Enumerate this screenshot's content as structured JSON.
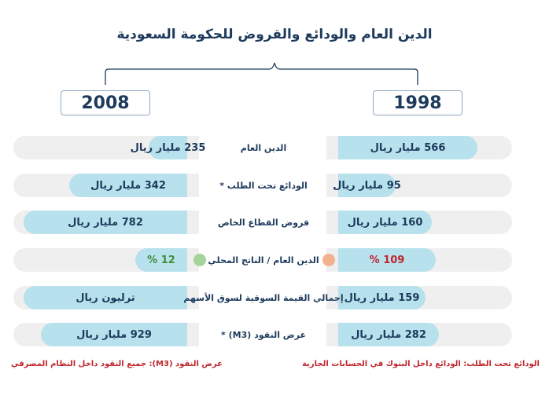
{
  "title": "الدين العام والودائع والقروض للحكومة السعودية",
  "years": {
    "left": "2008",
    "right": "1998"
  },
  "colors": {
    "bar": "#b7e1ec",
    "track": "#efefef",
    "text": "#1d3a5c",
    "accent_red": "#c0262d",
    "accent_green": "#3f8f3a",
    "dot_orange": "#f2b18f",
    "dot_green": "#a6d39a"
  },
  "chart_data": {
    "type": "bar",
    "title": "الدين العام والودائع والقروض للحكومة السعودية",
    "series": [
      {
        "name": "2008",
        "values": [
          235,
          342,
          782,
          12,
          null,
          929
        ]
      },
      {
        "name": "1998",
        "values": [
          566,
          95,
          160,
          109,
          159,
          282
        ]
      }
    ],
    "categories": [
      "الدين العام",
      "الودائع تحت الطلب *",
      "قروض القطاع الخاص",
      "الدين العام / الناتج المحلي",
      "إجمالي القيمة السوقية لسوق الأسهم",
      "عرض النقود (M3) *"
    ],
    "rows": [
      {
        "label": "الدين العام",
        "left_text": "235 مليار ريال",
        "right_text": "566 مليار ريال",
        "left_fill": 0.22,
        "right_fill": 0.8
      },
      {
        "label": "الودائع تحت الطلب *",
        "left_text": "342 مليار ريال",
        "right_text": "95 مليار ريال",
        "left_fill": 0.68,
        "right_fill": 0.33
      },
      {
        "label": "قروض القطاع الخاص",
        "left_text": "782 مليار ريال",
        "right_text": "160 مليار ريال",
        "left_fill": 0.94,
        "right_fill": 0.54
      },
      {
        "label": "الدين العام / الناتج المحلي",
        "left_text": "12 %",
        "right_text": "109 %",
        "left_fill": 0.3,
        "right_fill": 0.56,
        "left_color": "green",
        "right_color": "red",
        "dots": true
      },
      {
        "label": "إجمالي القيمة السوقية لسوق الأسهم",
        "left_text": "ترليون ريال",
        "right_text": "159 مليار ريال",
        "left_fill": 0.94,
        "right_fill": 0.5
      },
      {
        "label": "عرض النقود (M3) *",
        "left_text": "929 مليار ريال",
        "right_text": "282 مليار ريال",
        "left_fill": 0.84,
        "right_fill": 0.58
      }
    ]
  },
  "footnotes": {
    "left": "عرض النقود (M3): جميع النقود داخل النظام المصرفي",
    "right": "الودائع تحت الطلب: الودائع داخل البنوك في الحسابات الجارية"
  }
}
